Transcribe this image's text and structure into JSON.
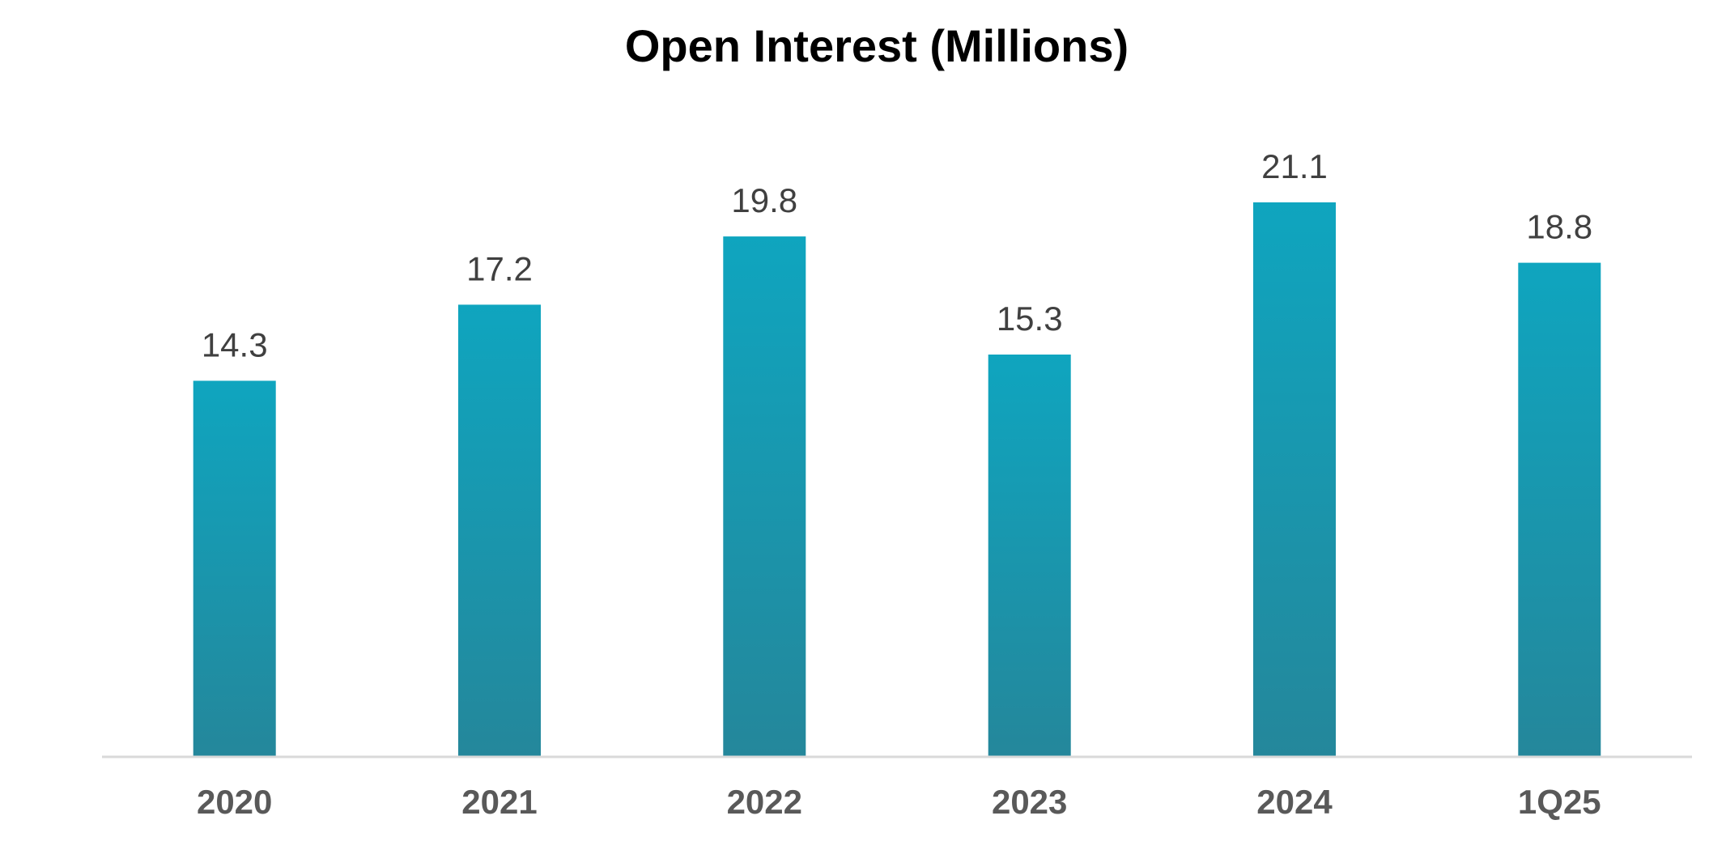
{
  "chart_data": {
    "type": "bar",
    "title": "Open Interest (Millions)",
    "xlabel": "",
    "ylabel": "",
    "categories": [
      "2020",
      "2021",
      "2022",
      "2023",
      "2024",
      "1Q25"
    ],
    "values": [
      14.3,
      17.2,
      19.8,
      15.3,
      21.1,
      18.8
    ],
    "data_labels": [
      "14.3",
      "17.2",
      "19.8",
      "15.3",
      "21.1",
      "18.8"
    ],
    "ylim": [
      0,
      21.1
    ],
    "grid": false,
    "legend": "none",
    "colors": {
      "bar_top": "#0fa5bf",
      "bar_bottom": "#24879b",
      "axis": "#d9d9d9",
      "title": "#000000",
      "data_label": "#404040",
      "tick_label": "#595959"
    }
  }
}
